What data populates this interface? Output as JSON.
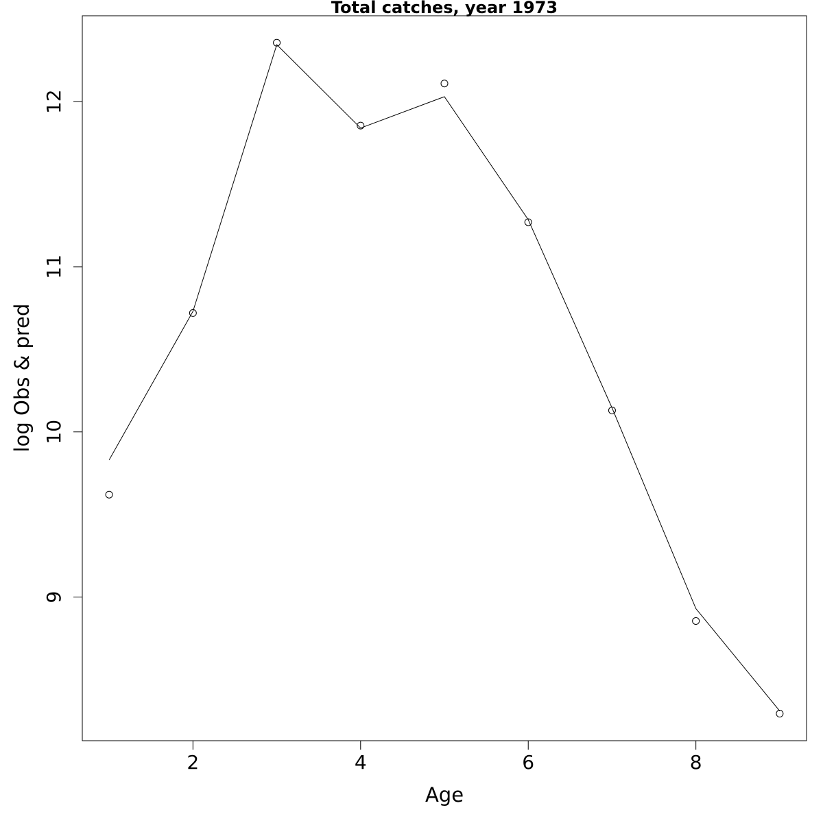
{
  "chart_data": {
    "type": "line",
    "title": "Total catches, year 1973",
    "xlabel": "Age",
    "ylabel": "log Obs & pred",
    "x": [
      1,
      2,
      3,
      4,
      5,
      6,
      7,
      8,
      9
    ],
    "series": [
      {
        "style": "points",
        "color": "#000000",
        "values": [
          9.62,
          10.72,
          12.357,
          11.855,
          12.11,
          11.27,
          10.13,
          8.855,
          8.294
        ]
      },
      {
        "style": "line",
        "color": "#000000",
        "values": [
          9.83,
          10.73,
          12.345,
          11.84,
          12.03,
          11.285,
          10.145,
          8.93,
          8.31
        ]
      }
    ],
    "xlim": [
      0.68,
      9.32
    ],
    "ylim": [
      8.13,
      12.52
    ],
    "xticks": [
      2,
      4,
      6,
      8
    ],
    "yticks": [
      9,
      10,
      11,
      12
    ],
    "grid": false
  }
}
